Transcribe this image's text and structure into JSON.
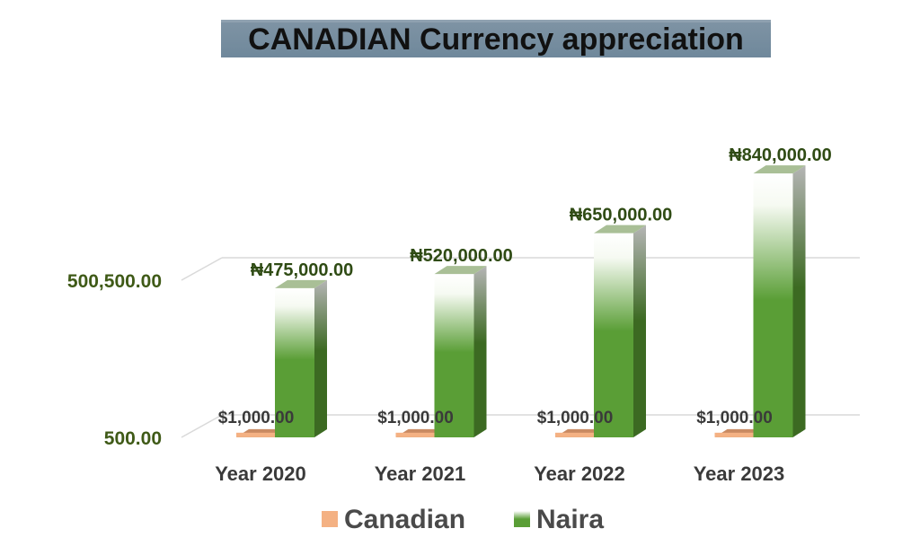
{
  "chart_data": {
    "type": "bar",
    "title": "CANADIAN Currency appreciation",
    "categories": [
      "Year 2020",
      "Year 2021",
      "Year 2022",
      "Year 2023"
    ],
    "series": [
      {
        "name": "Canadian",
        "values": [
          1000,
          1000,
          1000,
          1000
        ],
        "labels": [
          "$1,000.00",
          "$1,000.00",
          "$1,000.00",
          "$1,000.00"
        ],
        "color": "#f4b183"
      },
      {
        "name": "Naira",
        "values": [
          475000,
          520000,
          650000,
          840000
        ],
        "labels": [
          "₦475,000.00",
          "₦520,000.00",
          "₦650,000.00",
          "₦840,000.00"
        ],
        "color": "#5a9e36"
      }
    ],
    "y_ticks": [
      500,
      500500
    ],
    "y_tick_labels": [
      "500.00",
      "500,500.00"
    ],
    "grid": true,
    "legend": "bottom",
    "style": "3d-column"
  }
}
